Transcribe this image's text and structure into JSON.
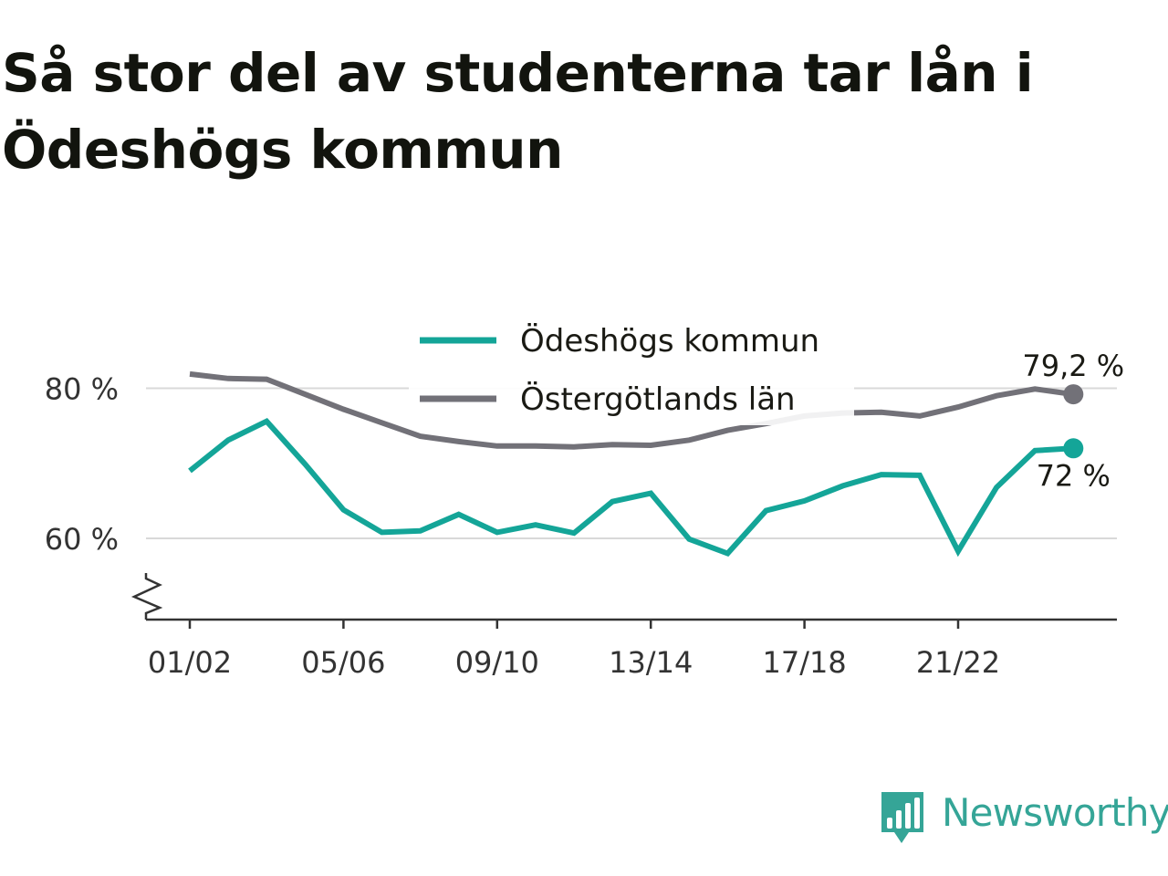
{
  "title": "Så stor del av studenterna tar lån i Ödeshögs kommun",
  "brand": {
    "name": "Newsworthy",
    "icon": "newsworthy-logo-icon",
    "color": "#35a597"
  },
  "colors": {
    "teal": "#14a598",
    "gray": "#727178",
    "grid": "#d9d9d9",
    "axis": "#333333"
  },
  "chart_data": {
    "type": "line",
    "title": "Så stor del av studenterna tar lån i Ödeshögs kommun",
    "xlabel": "",
    "ylabel": "",
    "ylim": [
      50,
      88
    ],
    "y_ticks": [
      60,
      80
    ],
    "y_tick_labels": [
      "60 %",
      "80 %"
    ],
    "y_axis_break": true,
    "grid": "horizontal",
    "legend_position": "top-center",
    "x_tick_labels": [
      "01/02",
      "05/06",
      "09/10",
      "13/14",
      "17/18",
      "21/22"
    ],
    "categories": [
      "01/02",
      "02/03",
      "03/04",
      "04/05",
      "05/06",
      "06/07",
      "07/08",
      "08/09",
      "09/10",
      "10/11",
      "11/12",
      "12/13",
      "13/14",
      "14/15",
      "15/16",
      "16/17",
      "17/18",
      "18/19",
      "19/20",
      "20/21",
      "21/22",
      "22/23",
      "23/24",
      "24/25"
    ],
    "series": [
      {
        "name": "Ödeshögs kommun",
        "color": "#14a598",
        "values": [
          69.0,
          73.1,
          75.6,
          69.9,
          63.8,
          60.8,
          61.0,
          63.2,
          60.8,
          61.8,
          60.7,
          64.9,
          66.0,
          59.9,
          58.0,
          63.7,
          65.0,
          67.0,
          68.5,
          68.4,
          58.3,
          66.8,
          71.7,
          72.0
        ],
        "end_label": "72 %"
      },
      {
        "name": "Östergötlands län",
        "color": "#727178",
        "values": [
          81.9,
          81.3,
          81.2,
          79.2,
          77.2,
          75.4,
          73.6,
          72.9,
          72.3,
          72.3,
          72.2,
          72.5,
          72.4,
          73.1,
          74.4,
          75.3,
          76.3,
          76.7,
          76.8,
          76.3,
          77.5,
          79.0,
          79.9,
          79.2
        ],
        "end_label": "79,2 %"
      }
    ]
  }
}
